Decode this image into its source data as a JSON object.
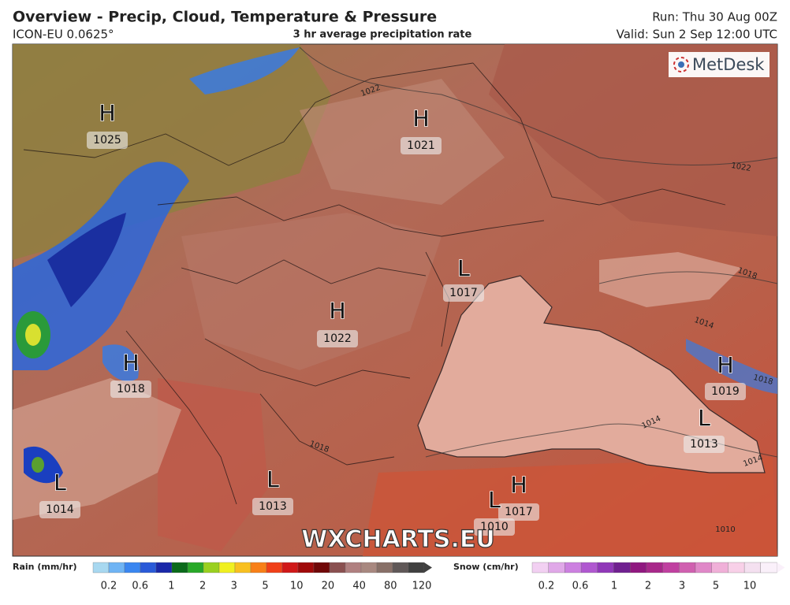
{
  "header": {
    "title": "Overview - Precip, Cloud, Temperature & Pressure",
    "model": "ICON-EU 0.0625°",
    "subtitle": "3 hr average precipitation rate",
    "run": "Run: Thu 30 Aug 00Z",
    "valid": "Valid: Sun 2 Sep 12:00 UTC"
  },
  "logo": "MetDesk",
  "watermark": "WXCHARTS.EU",
  "pressure_centers": [
    {
      "letter": "H",
      "value": 1025
    },
    {
      "letter": "H",
      "value": 1021
    },
    {
      "letter": "L",
      "value": 1017
    },
    {
      "letter": "H",
      "value": 1022
    },
    {
      "letter": "H",
      "value": 1018
    },
    {
      "letter": "H",
      "value": 1019
    },
    {
      "letter": "L",
      "value": 1013
    },
    {
      "letter": "L",
      "value": 1014
    },
    {
      "letter": "L",
      "value": 1013
    },
    {
      "letter": "H",
      "value": 1017
    },
    {
      "letter": "L",
      "value": 1010
    }
  ],
  "isobar_labels": [
    1022,
    1022,
    1018,
    1014,
    1018,
    1014,
    1014,
    1018,
    1010
  ],
  "legend": {
    "rain": {
      "label": "Rain (mm/hr)",
      "ticks": [
        0.2,
        0.6,
        1,
        2,
        3,
        5,
        10,
        20,
        40,
        80,
        120
      ]
    },
    "snow": {
      "label": "Snow (cm/hr)",
      "ticks": [
        0.2,
        0.6,
        1,
        2,
        3,
        5,
        10
      ]
    }
  }
}
